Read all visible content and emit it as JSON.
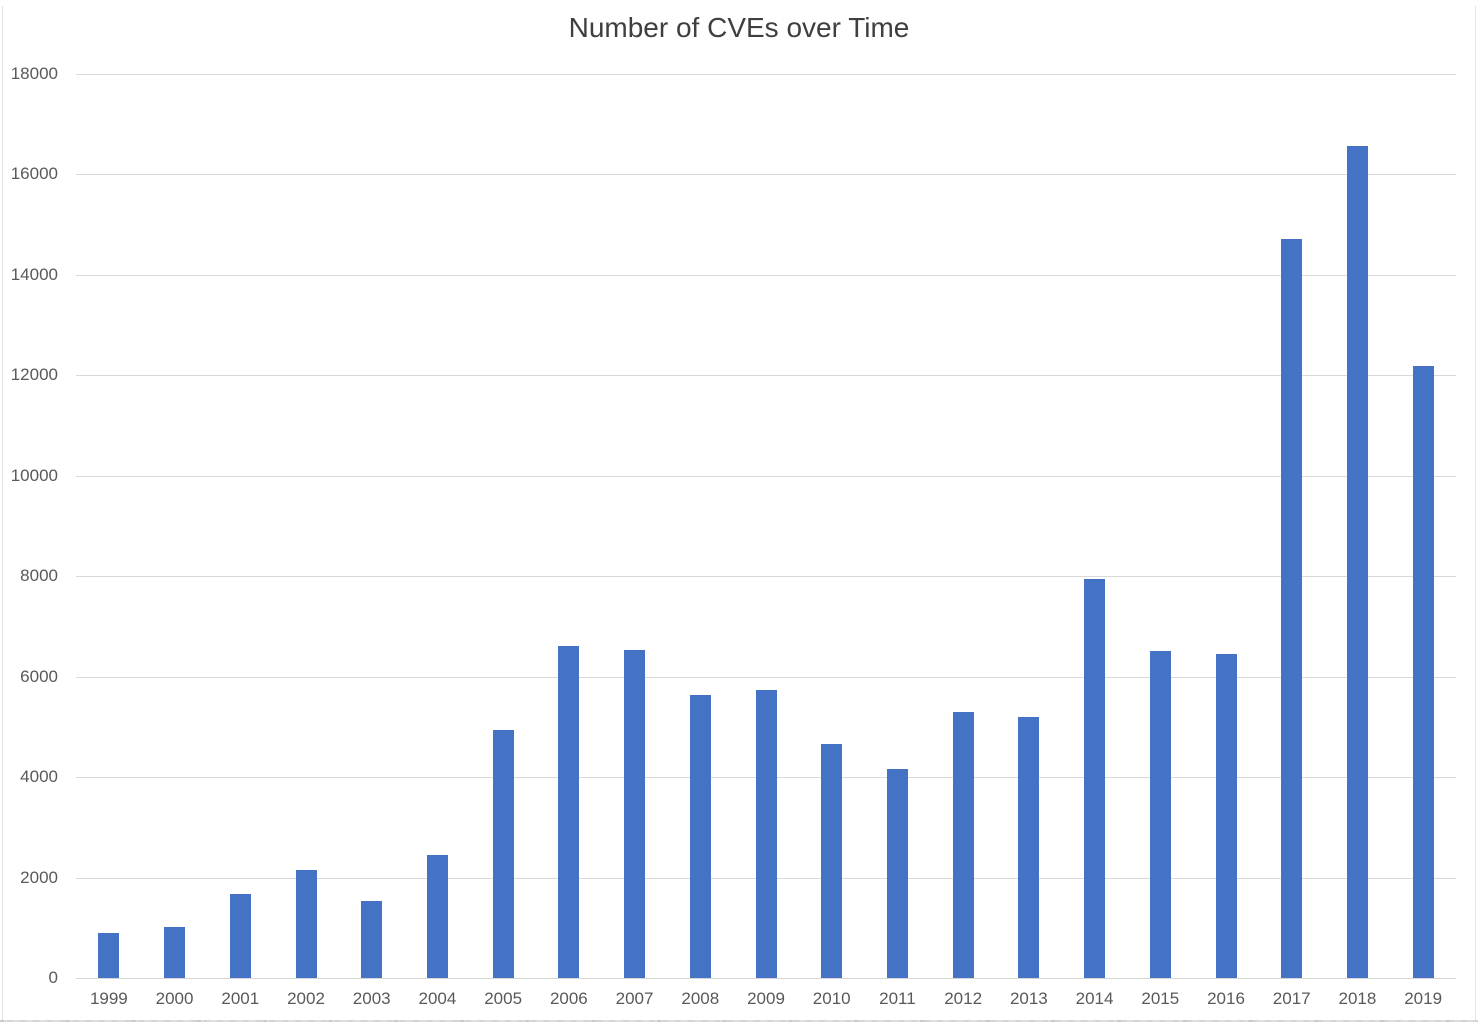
{
  "chart_data": {
    "type": "bar",
    "title": "Number of CVEs over Time",
    "categories": [
      "1999",
      "2000",
      "2001",
      "2002",
      "2003",
      "2004",
      "2005",
      "2006",
      "2007",
      "2008",
      "2009",
      "2010",
      "2011",
      "2012",
      "2013",
      "2014",
      "2015",
      "2016",
      "2017",
      "2018",
      "2019"
    ],
    "values": [
      894,
      1020,
      1677,
      2156,
      1527,
      2451,
      4935,
      6610,
      6520,
      5632,
      5736,
      4653,
      4155,
      5297,
      5191,
      7939,
      6504,
      6447,
      14714,
      16556,
      12174
    ],
    "xlabel": "",
    "ylabel": "",
    "ylim": [
      0,
      18000
    ],
    "y_tick_step": 2000,
    "y_tick_labels": [
      "18000",
      "16000",
      "14000",
      "12000",
      "10000",
      "8000",
      "6000",
      "4000",
      "2000",
      "0"
    ],
    "grid": "horizontal",
    "legend_position": "none",
    "bar_color": "#4472C4",
    "gridline_color": "#D9D9D9",
    "axis_text_color": "#595959",
    "title_color": "#3F3F3F",
    "background_color": "#FFFFFF"
  }
}
